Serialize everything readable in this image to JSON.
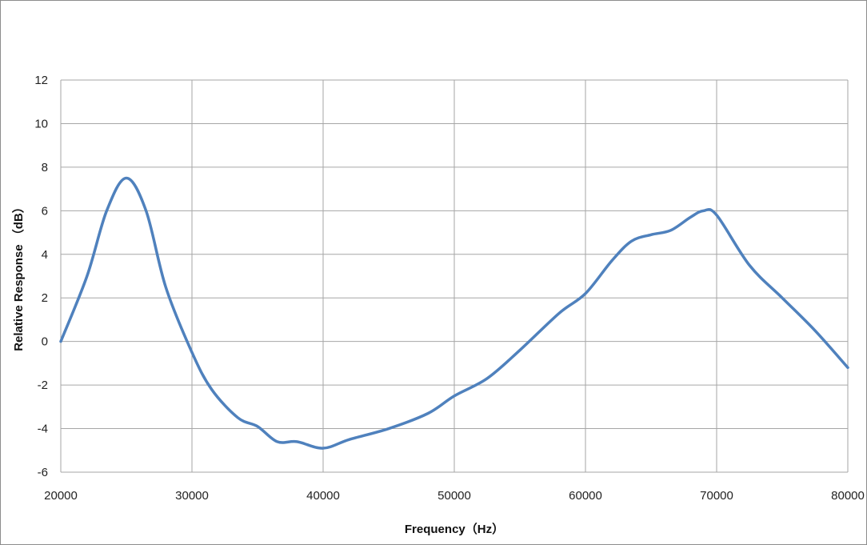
{
  "chart_data": {
    "type": "line",
    "title": "",
    "xlabel": "Frequency（Hz）",
    "ylabel": "Relative Response （dB）",
    "xlim": [
      20000,
      80000
    ],
    "ylim": [
      -6,
      12
    ],
    "x_ticks": [
      "20000",
      "30000",
      "40000",
      "50000",
      "60000",
      "70000",
      "80000"
    ],
    "y_ticks": [
      "12",
      "10",
      "8",
      "6",
      "4",
      "2",
      "0",
      "-2",
      "-4",
      "-6"
    ],
    "grid": true,
    "legend": "none",
    "series": [
      {
        "color": "#4f81bd",
        "x": [
          20000,
          22000,
          23500,
          25000,
          26500,
          28000,
          30000,
          31500,
          33500,
          35000,
          36500,
          38000,
          40000,
          42000,
          45000,
          48000,
          50000,
          52500,
          55000,
          58000,
          60000,
          62000,
          63500,
          65000,
          66500,
          68000,
          69000,
          70000,
          72500,
          75000,
          77500,
          80000
        ],
        "y": [
          0.0,
          3.0,
          6.0,
          7.5,
          6.0,
          2.5,
          -0.5,
          -2.2,
          -3.5,
          -3.9,
          -4.6,
          -4.6,
          -4.9,
          -4.5,
          -4.0,
          -3.3,
          -2.5,
          -1.7,
          -0.4,
          1.3,
          2.2,
          3.7,
          4.6,
          4.9,
          5.1,
          5.7,
          6.0,
          5.8,
          3.5,
          2.0,
          0.5,
          -1.2
        ]
      }
    ]
  }
}
